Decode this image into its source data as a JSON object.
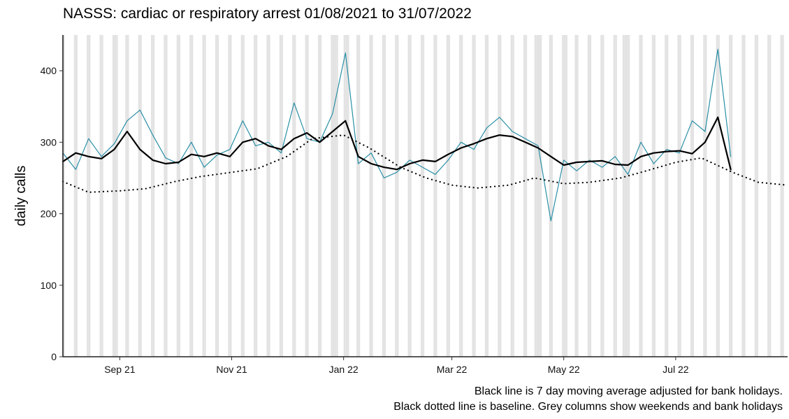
{
  "chart_data": {
    "type": "line",
    "title": "NASSS: cardiac or respiratory arrest 01/08/2021 to 31/07/2022",
    "xlabel": "",
    "ylabel": "daily calls",
    "caption_lines": [
      "Black line is 7 day moving average adjusted for bank holidays.",
      "Black dotted line is baseline. Grey columns show weekends and bank holidays"
    ],
    "xlim": [
      "2021-08-01",
      "2022-08-31"
    ],
    "ylim": [
      0,
      450
    ],
    "y_ticks": [
      0,
      100,
      200,
      300,
      400
    ],
    "x_ticks": [
      {
        "date": "2021-09-01",
        "label": "Sep 21"
      },
      {
        "date": "2021-11-01",
        "label": "Nov 21"
      },
      {
        "date": "2022-01-01",
        "label": "Jan 22"
      },
      {
        "date": "2022-03-01",
        "label": "Mar 22"
      },
      {
        "date": "2022-05-01",
        "label": "May 22"
      },
      {
        "date": "2022-07-01",
        "label": "Jul 22"
      }
    ],
    "grid": false,
    "legend": "none",
    "shaded_columns": "weekends and bank holidays",
    "bank_holidays": [
      "2021-08-30",
      "2021-12-27",
      "2021-12-28",
      "2022-01-03",
      "2022-04-15",
      "2022-04-18",
      "2022-05-02",
      "2022-06-02",
      "2022-06-03"
    ],
    "series": [
      {
        "role": "daily",
        "style": "line",
        "color": "#2a8fa6",
        "x": [
          "2021-08-01",
          "2021-08-08",
          "2021-08-15",
          "2021-08-22",
          "2021-08-29",
          "2021-09-05",
          "2021-09-12",
          "2021-09-19",
          "2021-09-26",
          "2021-10-03",
          "2021-10-10",
          "2021-10-17",
          "2021-10-24",
          "2021-10-31",
          "2021-11-07",
          "2021-11-14",
          "2021-11-21",
          "2021-11-28",
          "2021-12-05",
          "2021-12-12",
          "2021-12-19",
          "2021-12-26",
          "2022-01-02",
          "2022-01-09",
          "2022-01-16",
          "2022-01-23",
          "2022-01-30",
          "2022-02-06",
          "2022-02-13",
          "2022-02-20",
          "2022-02-27",
          "2022-03-06",
          "2022-03-13",
          "2022-03-20",
          "2022-03-27",
          "2022-04-03",
          "2022-04-10",
          "2022-04-17",
          "2022-04-24",
          "2022-05-01",
          "2022-05-08",
          "2022-05-15",
          "2022-05-22",
          "2022-05-29",
          "2022-06-05",
          "2022-06-12",
          "2022-06-19",
          "2022-06-26",
          "2022-07-03",
          "2022-07-10",
          "2022-07-17",
          "2022-07-24",
          "2022-07-31"
        ],
        "values": [
          285,
          262,
          305,
          280,
          298,
          330,
          345,
          310,
          278,
          270,
          300,
          265,
          282,
          290,
          330,
          295,
          300,
          285,
          355,
          305,
          300,
          340,
          425,
          270,
          285,
          250,
          258,
          275,
          265,
          255,
          275,
          300,
          290,
          320,
          335,
          315,
          305,
          295,
          190,
          275,
          260,
          275,
          265,
          280,
          255,
          300,
          270,
          290,
          285,
          330,
          315,
          430,
          280
        ]
      },
      {
        "role": "moving_average",
        "style": "line",
        "color": "#000000",
        "x": [
          "2021-08-01",
          "2021-08-08",
          "2021-08-15",
          "2021-08-22",
          "2021-08-29",
          "2021-09-05",
          "2021-09-12",
          "2021-09-19",
          "2021-09-26",
          "2021-10-03",
          "2021-10-10",
          "2021-10-17",
          "2021-10-24",
          "2021-10-31",
          "2021-11-07",
          "2021-11-14",
          "2021-11-21",
          "2021-11-28",
          "2021-12-05",
          "2021-12-12",
          "2021-12-19",
          "2021-12-26",
          "2022-01-02",
          "2022-01-09",
          "2022-01-16",
          "2022-01-23",
          "2022-01-30",
          "2022-02-06",
          "2022-02-13",
          "2022-02-20",
          "2022-02-27",
          "2022-03-06",
          "2022-03-13",
          "2022-03-20",
          "2022-03-27",
          "2022-04-03",
          "2022-04-10",
          "2022-04-17",
          "2022-04-24",
          "2022-05-01",
          "2022-05-08",
          "2022-05-15",
          "2022-05-22",
          "2022-05-29",
          "2022-06-05",
          "2022-06-12",
          "2022-06-19",
          "2022-06-26",
          "2022-07-03",
          "2022-07-10",
          "2022-07-17",
          "2022-07-24",
          "2022-07-31"
        ],
        "values": [
          273,
          285,
          280,
          277,
          290,
          315,
          290,
          275,
          270,
          272,
          283,
          280,
          285,
          280,
          300,
          305,
          295,
          290,
          305,
          313,
          300,
          315,
          330,
          280,
          270,
          265,
          262,
          270,
          275,
          273,
          283,
          292,
          298,
          305,
          310,
          308,
          300,
          292,
          280,
          268,
          272,
          273,
          274,
          269,
          268,
          280,
          285,
          287,
          288,
          284,
          300,
          335,
          262
        ]
      },
      {
        "role": "baseline",
        "style": "dotted",
        "color": "#000000",
        "x": [
          "2021-08-01",
          "2021-08-15",
          "2021-09-01",
          "2021-09-15",
          "2021-10-01",
          "2021-10-15",
          "2021-11-01",
          "2021-11-15",
          "2021-12-01",
          "2021-12-15",
          "2022-01-01",
          "2022-01-15",
          "2022-02-01",
          "2022-02-15",
          "2022-03-01",
          "2022-03-15",
          "2022-04-01",
          "2022-04-15",
          "2022-05-01",
          "2022-05-15",
          "2022-06-01",
          "2022-06-15",
          "2022-07-01",
          "2022-07-15",
          "2022-08-01",
          "2022-08-15",
          "2022-08-31"
        ],
        "values": [
          245,
          230,
          232,
          235,
          245,
          252,
          258,
          263,
          280,
          305,
          310,
          292,
          265,
          250,
          240,
          236,
          240,
          250,
          242,
          244,
          250,
          260,
          272,
          278,
          258,
          244,
          240
        ]
      }
    ]
  }
}
